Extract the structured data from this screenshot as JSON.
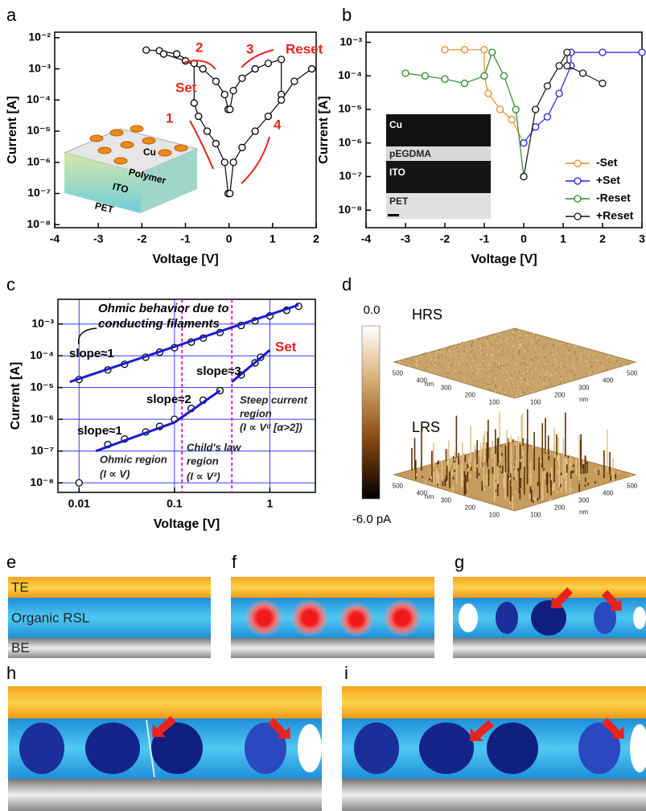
{
  "panel_labels": [
    "a",
    "b",
    "c",
    "d",
    "e",
    "f",
    "g",
    "h",
    "i"
  ],
  "chart_data": [
    {
      "type": "line",
      "xlabel": "Voltage [V]",
      "ylabel": "Current [A]",
      "logy": true,
      "xlim": [
        -4,
        2
      ],
      "xticks": [
        -4,
        -3,
        -2,
        -1,
        0,
        1,
        2
      ],
      "ylim": [
        8e-09,
        0.015
      ],
      "yticks": [
        {
          "value": 1e-08,
          "label": "10⁻⁸"
        },
        {
          "value": 1e-07,
          "label": "10⁻⁷"
        },
        {
          "value": 1e-06,
          "label": "10⁻⁶"
        },
        {
          "value": 1e-05,
          "label": "10⁻⁵"
        },
        {
          "value": 0.0001,
          "label": "10⁻⁴"
        },
        {
          "value": 0.001,
          "label": "10⁻³"
        },
        {
          "value": 0.01,
          "label": "10⁻²"
        }
      ],
      "series": [
        {
          "color": "#000000",
          "x": [
            -0.02,
            -0.1,
            -0.3,
            -0.5,
            -0.7,
            -0.8,
            -0.8,
            -1.2,
            -1.6,
            -1.9,
            null,
            -1.5,
            -1.0,
            -0.6,
            -0.3,
            -0.1,
            -0.02,
            null,
            0.02,
            0.1,
            0.3,
            0.6,
            0.9,
            1.2,
            1.2,
            null,
            0.02,
            0.1,
            0.3,
            0.6,
            0.9,
            1.2,
            1.5,
            1.9
          ],
          "values": [
            1e-07,
            1e-06,
            4e-06,
            1e-05,
            3e-05,
            8e-05,
            0.0015,
            0.003,
            0.0038,
            0.004,
            null,
            0.003,
            0.0018,
            0.001,
            0.0004,
            0.00015,
            5e-05,
            null,
            5e-05,
            0.0002,
            0.0005,
            0.001,
            0.0015,
            0.002,
            0.00015,
            null,
            1e-07,
            1e-06,
            3e-06,
            1e-05,
            3e-05,
            0.0001,
            0.0004,
            0.001
          ]
        }
      ],
      "annotations": {
        "set": "Set",
        "reset": "Reset",
        "steps": [
          "1",
          "2",
          "3",
          "4"
        ],
        "inset_layers": [
          "Cu",
          "Polymer",
          "ITO",
          "PET"
        ]
      }
    },
    {
      "type": "line",
      "xlabel": "Voltage [V]",
      "ylabel": "Current [A]",
      "logy": true,
      "legend": "lower right",
      "xlim": [
        -4,
        3
      ],
      "xticks": [
        -4,
        -3,
        -2,
        -1,
        0,
        1,
        2,
        3
      ],
      "ylim": [
        3e-09,
        0.002
      ],
      "yticks": [
        {
          "value": 1e-08,
          "label": "10⁻⁸"
        },
        {
          "value": 1e-07,
          "label": "10⁻⁷"
        },
        {
          "value": 1e-06,
          "label": "10⁻⁶"
        },
        {
          "value": 1e-05,
          "label": "10⁻⁵"
        },
        {
          "value": 0.0001,
          "label": "10⁻⁴"
        },
        {
          "value": 0.001,
          "label": "10⁻³"
        }
      ],
      "series": [
        {
          "name": "-Set",
          "color": "#f28a1e",
          "x": [
            0,
            -0.3,
            -0.6,
            -0.9,
            -1.0,
            -1.0,
            -1.5,
            -2.0
          ],
          "values": [
            1e-06,
            5e-06,
            1e-05,
            3e-05,
            0.0001,
            0.0006,
            0.0006,
            0.0006
          ]
        },
        {
          "name": "+Set",
          "color": "#1f1fd6",
          "x": [
            0,
            0.3,
            0.6,
            0.9,
            1.2,
            1.2,
            2,
            3
          ],
          "values": [
            1e-06,
            3e-06,
            6e-06,
            3e-05,
            0.0002,
            0.0005,
            0.0005,
            0.0005
          ]
        },
        {
          "name": "-Reset",
          "color": "#2a8a2a",
          "x": [
            -3,
            -2.5,
            -2,
            -1.5,
            -1,
            -0.8,
            -0.5,
            -0.2,
            0
          ],
          "values": [
            0.00012,
            0.0001,
            8e-05,
            6e-05,
            0.0001,
            0.0005,
            0.0001,
            1e-05,
            1e-07
          ]
        },
        {
          "name": "+Reset",
          "color": "#111111",
          "x": [
            0,
            0.3,
            0.6,
            0.9,
            1.1,
            1.1,
            1.5,
            2.0
          ],
          "values": [
            1e-07,
            1e-05,
            5e-05,
            0.0002,
            0.0005,
            0.0002,
            0.00012,
            6e-05
          ]
        }
      ],
      "annotations": {
        "inset_layers": [
          "Cu",
          "pEGDMA",
          "ITO",
          "PET"
        ]
      }
    },
    {
      "type": "scatter",
      "xlabel": "Voltage [V]",
      "ylabel": "Current [A]",
      "logx": true,
      "logy": true,
      "grid": true,
      "grid_color": "#3a3aff",
      "xlim": [
        0.006,
        3
      ],
      "xticks": [
        0.01,
        0.1,
        1
      ],
      "ylim": [
        5e-09,
        0.006
      ],
      "yticks": [
        {
          "value": 1e-08,
          "label": "10⁻⁸"
        },
        {
          "value": 1e-07,
          "label": "10⁻⁷"
        },
        {
          "value": 1e-06,
          "label": "10⁻⁶"
        },
        {
          "value": 1e-05,
          "label": "10⁻⁵"
        },
        {
          "value": 0.0001,
          "label": "10⁻⁴"
        },
        {
          "value": 0.001,
          "label": "10⁻³"
        }
      ],
      "series": [
        {
          "color": "#000000",
          "x": [
            0.01,
            0.02,
            0.03,
            0.05,
            0.07,
            0.1,
            0.15,
            0.2,
            0.3,
            0.5,
            0.7,
            1,
            1.5,
            2
          ],
          "values": [
            1.8e-05,
            3.6e-05,
            5.4e-05,
            9e-05,
            0.00013,
            0.00018,
            0.00027,
            0.00036,
            0.00054,
            0.0009,
            0.00126,
            0.0018,
            0.0027,
            0.0036
          ]
        },
        {
          "color": "#000000",
          "x": [
            0.01,
            0.02,
            0.03,
            0.05,
            0.07,
            0.1,
            0.15,
            0.2,
            0.3,
            0.5,
            0.7,
            0.8
          ],
          "values": [
            1e-08,
            1.6e-07,
            2.4e-07,
            4e-07,
            6e-07,
            1e-06,
            2.2e-06,
            4e-06,
            8e-06,
            2.5e-05,
            6e-05,
            9e-05
          ]
        }
      ],
      "fits": [
        {
          "color": "#1a1ad6",
          "x": [
            0.008,
            2
          ],
          "values": [
            1.5e-05,
            0.004
          ]
        },
        {
          "color": "#1a1ad6",
          "x": [
            0.015,
            0.1
          ],
          "values": [
            1e-07,
            8e-07
          ]
        },
        {
          "color": "#1a1ad6",
          "x": [
            0.1,
            0.3
          ],
          "values": [
            8e-07,
            8e-06
          ]
        },
        {
          "color": "#1a1ad6",
          "x": [
            0.4,
            1
          ],
          "values": [
            1.5e-05,
            0.00015
          ]
        }
      ],
      "vlines": [
        0.12,
        0.4
      ],
      "vline_color": "#e020c8",
      "annotations": {
        "filament": [
          "Ohmic behavior due to",
          "conducting filaments"
        ],
        "slope_top": "slope≈1",
        "set": "Set",
        "slope3": "slope≈3",
        "slope2": "slope≈2",
        "slope1": "slope≈1",
        "steep": [
          "Steep current",
          "region",
          "(I ∝ Vᵅ [α>2])"
        ],
        "child": [
          "Child's law",
          "region",
          "(I ∝ V²)"
        ],
        "ohmic": [
          "Ohmic region",
          "(I ∝ V)"
        ]
      }
    }
  ],
  "afm": {
    "colorbar_top": "0.0",
    "colorbar_bottom": "-6.0 pA",
    "images": [
      "HRS",
      "LRS"
    ],
    "axis_ticks": [
      "500",
      "400",
      "300",
      "200",
      "100"
    ],
    "unit": "nm"
  },
  "schematic": {
    "top": "TE",
    "middle": "Organic RSL",
    "bottom": "BE"
  }
}
